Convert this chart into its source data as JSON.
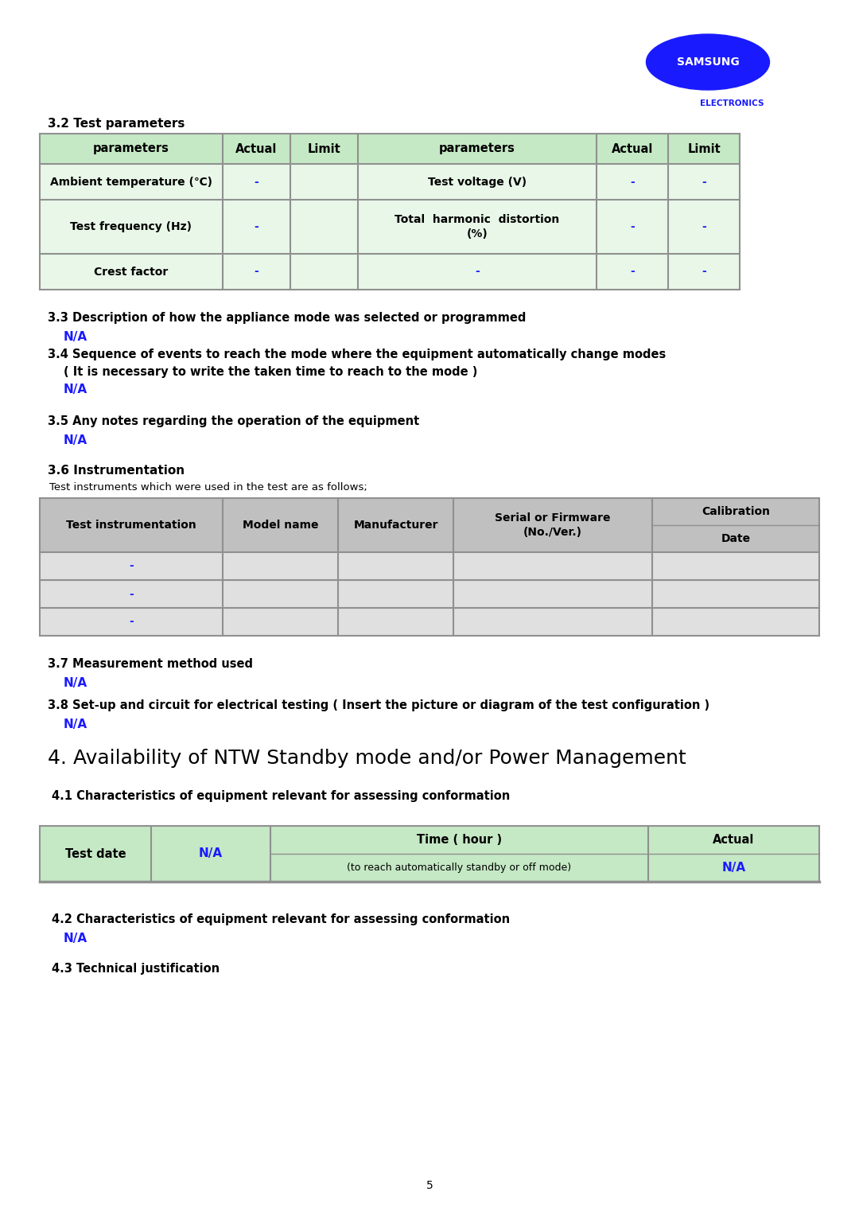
{
  "page_bg": "#ffffff",
  "samsung_blue": "#1a1aff",
  "text_black": "#000000",
  "table_header_bg": "#c5e8c5",
  "table_row_bg": "#e8f7e8",
  "table_border": "#909090",
  "table2_header_bg": "#c0c0c0",
  "table2_row_bg": "#e0e0e0",
  "table3_header_bg": "#c5e8c5",
  "table3_row_bg": "#e8f7e8",
  "section_32_title": "3.2 Test parameters",
  "table1_headers": [
    "parameters",
    "Actual",
    "Limit",
    "parameters",
    "Actual",
    "Limit"
  ],
  "table1_rows": [
    [
      "Ambient temperature (℃)",
      "-",
      "",
      "Test voltage (V)",
      "-",
      "-"
    ],
    [
      "Test frequency (Hz)",
      "-",
      "",
      "Total  harmonic  distortion\n(%)",
      "-",
      "-"
    ],
    [
      "Crest factor",
      "-",
      "",
      "-",
      "-",
      "-"
    ]
  ],
  "section_33": "3.3 Description of how the appliance mode was selected or programmed",
  "na_33": "N/A",
  "section_34_line1": "3.4 Sequence of events to reach the mode where the equipment automatically change modes",
  "section_34_line2": "( It is necessary to write the taken time to reach to the mode )",
  "na_34": "N/A",
  "section_35": "3.5 Any notes regarding the operation of the equipment",
  "na_35": "N/A",
  "section_36": "3.6 Instrumentation",
  "text_36_sub": "Test instruments which were used in the test are as follows;",
  "table2_rows": [
    [
      "-",
      "",
      "",
      "",
      ""
    ],
    [
      "-",
      "",
      "",
      "",
      ""
    ],
    [
      "-",
      "",
      "",
      "",
      ""
    ]
  ],
  "section_37": "3.7 Measurement method used",
  "na_37": "N/A",
  "section_38": "3.8 Set-up and circuit for electrical testing ( Insert the picture or diagram of the test configuration )",
  "na_38": "N/A",
  "section_4": "4. Availability of NTW Standby mode and/or Power Management",
  "section_41": "4.1 Characteristics of equipment relevant for assessing conformation",
  "section_42": "4.2 Characteristics of equipment relevant for assessing conformation",
  "na_42": "N/A",
  "section_43": "4.3 Technical justification",
  "page_num": "5"
}
